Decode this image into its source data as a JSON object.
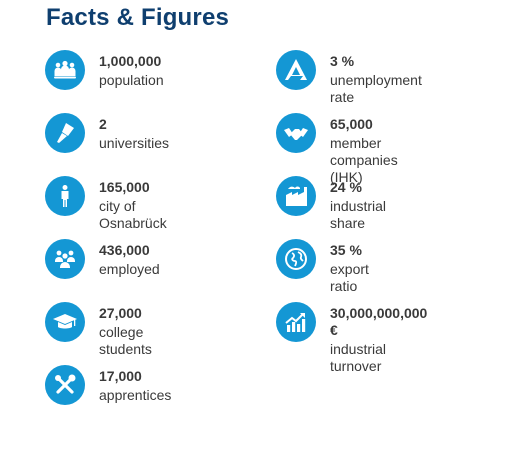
{
  "title": "Facts & Figures",
  "left_items": [
    {
      "value": "1,000,000",
      "label": "population",
      "icon": "crowd-icon"
    },
    {
      "value": "2",
      "label": "universities",
      "icon": "pen-icon"
    },
    {
      "value": "165,000",
      "label": "city of Osnabrück",
      "icon": "person-icon"
    },
    {
      "value": "436,000",
      "label": "employed",
      "icon": "group-icon"
    },
    {
      "value": "27,000",
      "label": "college students",
      "icon": "graduation-cap-icon"
    },
    {
      "value": "17,000",
      "label": "apprentices",
      "icon": "tools-icon"
    }
  ],
  "right_items": [
    {
      "value": "3 %",
      "label": "unemployment rate",
      "icon": "arbeitsagentur-logo-icon"
    },
    {
      "value": "65,000",
      "label": "member companies (IHK)",
      "icon": "handshake-icon"
    },
    {
      "value": "24 %",
      "label": "industrial share",
      "icon": "factory-icon"
    },
    {
      "value": "35 %",
      "label": "export ratio",
      "icon": "globe-icon"
    },
    {
      "value": "30,000,000,000 €",
      "label": "industrial turnover",
      "icon": "growth-chart-icon"
    }
  ],
  "colors": {
    "icon_bg": "#1497d4",
    "title": "#0f3f6f",
    "text": "#3a3a3a"
  }
}
